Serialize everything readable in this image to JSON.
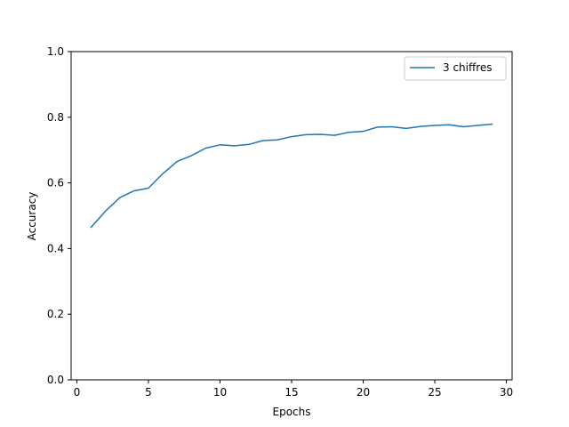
{
  "chart_data": {
    "type": "line",
    "title": "",
    "xlabel": "Epochs",
    "ylabel": "Accuracy",
    "xlim": [
      -0.4,
      30.4
    ],
    "ylim": [
      0.0,
      1.0
    ],
    "xticks": [
      0,
      5,
      10,
      15,
      20,
      25,
      30
    ],
    "yticks": [
      0.0,
      0.2,
      0.4,
      0.6,
      0.8,
      1.0
    ],
    "xtick_labels": [
      "0",
      "5",
      "10",
      "15",
      "20",
      "25",
      "30"
    ],
    "ytick_labels": [
      "0.0",
      "0.2",
      "0.4",
      "0.6",
      "0.8",
      "1.0"
    ],
    "grid": false,
    "legend_position": "top-right",
    "series": [
      {
        "name": "3 chiffres",
        "color": "#1f77b4",
        "x": [
          1,
          2,
          3,
          4,
          5,
          6,
          7,
          8,
          9,
          10,
          11,
          12,
          13,
          14,
          15,
          16,
          17,
          18,
          19,
          20,
          21,
          22,
          23,
          24,
          25,
          26,
          27,
          28,
          29
        ],
        "y": [
          0.465,
          0.514,
          0.555,
          0.576,
          0.584,
          0.628,
          0.665,
          0.683,
          0.706,
          0.716,
          0.713,
          0.717,
          0.729,
          0.731,
          0.741,
          0.747,
          0.748,
          0.745,
          0.754,
          0.757,
          0.77,
          0.771,
          0.766,
          0.772,
          0.775,
          0.777,
          0.771,
          0.775,
          0.779
        ]
      }
    ]
  }
}
